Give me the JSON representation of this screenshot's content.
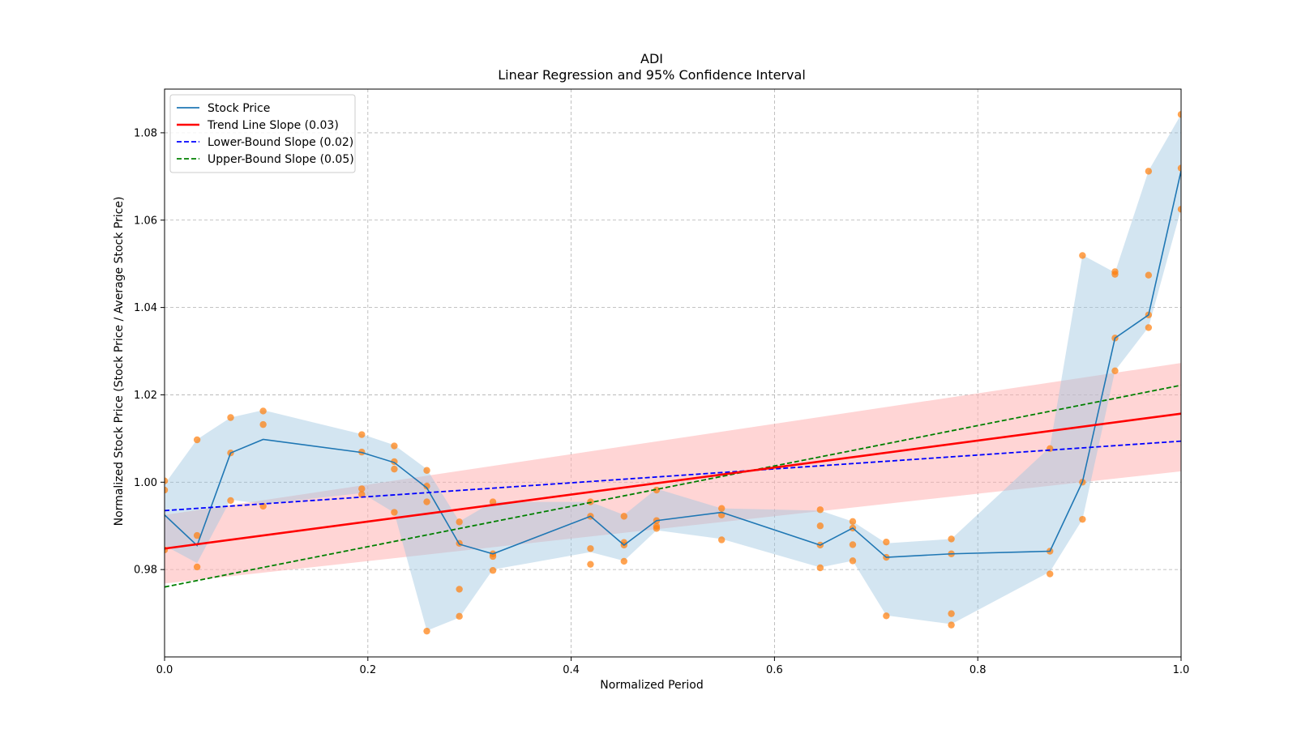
{
  "chart_data": {
    "type": "line",
    "title": "ADI",
    "subtitle": "Linear Regression and 95% Confidence Interval",
    "xlabel": "Normalized Period",
    "ylabel": "Normalized Stock Price (Stock Price / Average Stock Price)",
    "xlim": [
      0.0,
      1.0
    ],
    "ylim": [
      0.96,
      1.09
    ],
    "xticks": [
      0.0,
      0.2,
      0.4,
      0.6,
      0.8,
      1.0
    ],
    "xtick_labels": [
      "0.0",
      "0.2",
      "0.4",
      "0.6",
      "0.8",
      "1.0"
    ],
    "yticks": [
      0.98,
      1.0,
      1.02,
      1.04,
      1.06,
      1.08
    ],
    "ytick_labels": [
      "0.98",
      "1.00",
      "1.02",
      "1.04",
      "1.06",
      "1.08"
    ],
    "grid": true,
    "legend": {
      "placement": "top-left",
      "entries": [
        {
          "label": "Stock Price",
          "color": "#1f77b4",
          "dash": false
        },
        {
          "label": "Trend Line Slope (0.03)",
          "color": "#ff0000",
          "dash": false
        },
        {
          "label": "Lower-Bound Slope (0.02)",
          "color": "#0000ff",
          "dash": true
        },
        {
          "label": "Upper-Bound Slope (0.05)",
          "color": "#008000",
          "dash": true
        }
      ]
    },
    "colors": {
      "stock": "#1f77b4",
      "stock_band": "#9ec5e0",
      "points": "#ff7f0e",
      "trend": "#ff0000",
      "trend_band": "#ffb3b3",
      "lower": "#0000ff",
      "upper": "#008000",
      "grid": "#b0b0b0"
    },
    "stock_price": {
      "x": [
        0.0,
        0.032,
        0.065,
        0.097,
        0.194,
        0.226,
        0.258,
        0.29,
        0.323,
        0.419,
        0.452,
        0.484,
        0.548,
        0.645,
        0.677,
        0.71,
        0.774,
        0.871,
        0.903,
        0.935,
        0.968,
        1.0
      ],
      "y": [
        0.9925,
        0.9855,
        1.0067,
        1.0098,
        1.0068,
        1.0045,
        0.9987,
        0.9858,
        0.9836,
        0.9922,
        0.9856,
        0.9912,
        0.9931,
        0.9856,
        0.9895,
        0.9828,
        0.9836,
        0.9842,
        1.0001,
        1.033,
        1.0383,
        1.0713
      ],
      "band_lower": [
        0.9855,
        0.9815,
        0.996,
        0.995,
        0.9975,
        0.993,
        0.966,
        0.969,
        0.98,
        0.984,
        0.982,
        0.989,
        0.987,
        0.9805,
        0.982,
        0.9695,
        0.9675,
        0.9795,
        0.9915,
        1.0255,
        1.0355,
        1.0625
      ],
      "band_upper": [
        0.9995,
        1.0098,
        1.0148,
        1.0165,
        1.011,
        1.0085,
        1.003,
        0.991,
        0.9955,
        0.9955,
        0.9925,
        0.9985,
        0.994,
        0.9935,
        0.991,
        0.986,
        0.987,
        1.008,
        1.052,
        1.048,
        1.0713,
        1.0842
      ]
    },
    "observations": {
      "x": [
        0.0,
        0.0,
        0.0,
        0.032,
        0.032,
        0.032,
        0.065,
        0.065,
        0.065,
        0.097,
        0.097,
        0.097,
        0.194,
        0.194,
        0.194,
        0.194,
        0.226,
        0.226,
        0.226,
        0.226,
        0.258,
        0.258,
        0.258,
        0.258,
        0.29,
        0.29,
        0.29,
        0.29,
        0.323,
        0.323,
        0.323,
        0.323,
        0.419,
        0.419,
        0.419,
        0.419,
        0.452,
        0.452,
        0.452,
        0.452,
        0.484,
        0.484,
        0.484,
        0.484,
        0.548,
        0.548,
        0.548,
        0.645,
        0.645,
        0.645,
        0.645,
        0.677,
        0.677,
        0.677,
        0.677,
        0.71,
        0.71,
        0.71,
        0.774,
        0.774,
        0.774,
        0.774,
        0.871,
        0.871,
        0.871,
        0.903,
        0.903,
        0.903,
        0.935,
        0.935,
        0.935,
        0.935,
        0.968,
        0.968,
        0.968,
        0.968,
        1.0,
        1.0,
        1.0
      ],
      "y": [
        1.0003,
        0.9982,
        0.9845,
        1.0097,
        0.9878,
        0.9806,
        1.0148,
        1.0067,
        0.9958,
        1.0163,
        1.0132,
        0.9945,
        1.0109,
        1.0069,
        0.9985,
        0.9972,
        1.0083,
        1.003,
        1.0047,
        0.9931,
        1.0027,
        0.9991,
        0.9955,
        0.9659,
        0.9909,
        0.986,
        0.9755,
        0.9693,
        0.9955,
        0.9836,
        0.983,
        0.9798,
        0.9955,
        0.9922,
        0.9848,
        0.9812,
        0.9922,
        0.9862,
        0.9856,
        0.9819,
        0.9982,
        0.9912,
        0.9899,
        0.9894,
        0.994,
        0.9925,
        0.9868,
        0.9937,
        0.99,
        0.9856,
        0.9804,
        0.991,
        0.9857,
        0.9895,
        0.982,
        0.9863,
        0.9828,
        0.9694,
        0.987,
        0.9836,
        0.9699,
        0.9673,
        1.0077,
        0.9842,
        0.979,
        1.0519,
        1.0,
        0.9915,
        1.0482,
        1.0476,
        1.033,
        1.0255,
        1.0712,
        1.0474,
        1.0383,
        1.0354,
        1.0842,
        1.0719,
        1.0625
      ]
    },
    "trend_line": {
      "x": [
        0.0,
        1.0
      ],
      "y": [
        0.9848,
        1.0157
      ],
      "band_lower": [
        0.9768,
        1.0025
      ],
      "band_upper": [
        0.9925,
        1.0273
      ]
    },
    "lower_bound_line": {
      "x": [
        0.0,
        1.0
      ],
      "y": [
        0.9935,
        1.0094
      ]
    },
    "upper_bound_line": {
      "x": [
        0.0,
        1.0
      ],
      "y": [
        0.976,
        1.0222
      ]
    }
  }
}
